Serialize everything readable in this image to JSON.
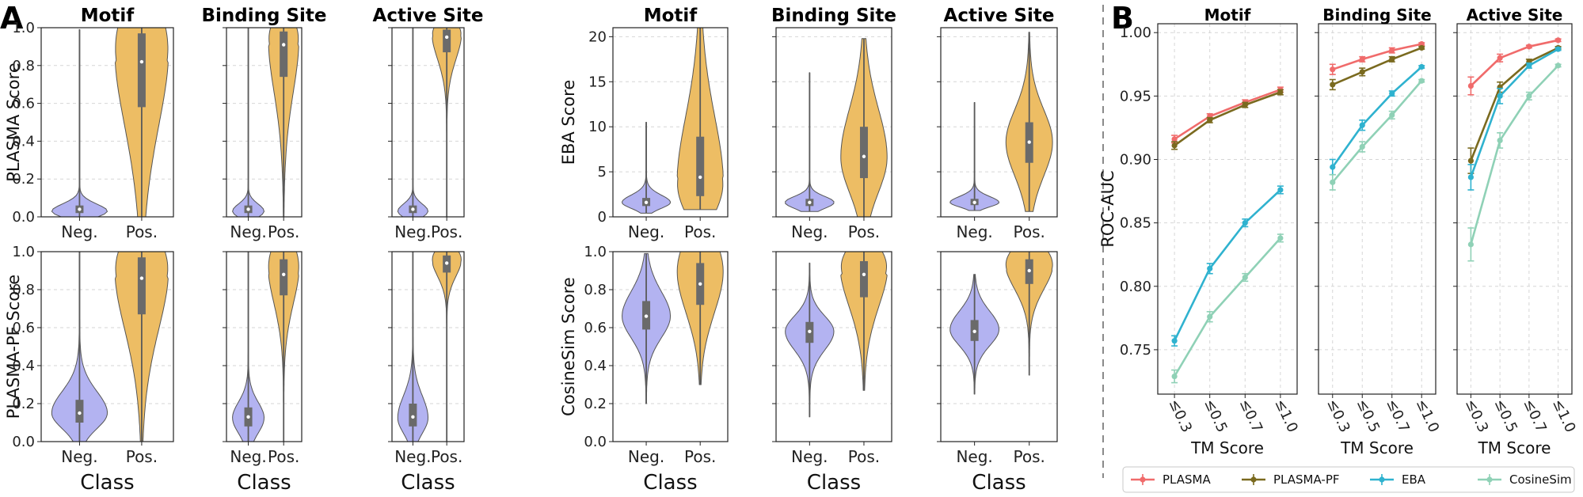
{
  "figure": {
    "panel_a_label": "A",
    "panel_b_label": "B"
  },
  "colors": {
    "negative": "#b3b3f1",
    "positive": "#edbd64",
    "PLASMA": "#f06b6b",
    "PLASMA-PF": "#7a6a1f",
    "EBA": "#2fb2cf",
    "CosineSim": "#8fd1b6"
  },
  "chart_data": [
    {
      "type": "violin",
      "panel": "A",
      "row": "PLASMA Score",
      "ylabel": "PLASMA Score",
      "ylim": [
        0,
        1.0
      ],
      "yticks": [
        "0.0",
        "0.2",
        "0.4",
        "0.6",
        "0.8",
        "1.0"
      ],
      "xlabel": "Class",
      "categories": [
        "Neg.",
        "Pos."
      ],
      "subplots": [
        {
          "title": "Motif",
          "neg": {
            "min": 0.0,
            "q1": 0.02,
            "median": 0.04,
            "q3": 0.06,
            "max": 0.99,
            "mode": 0.02
          },
          "pos": {
            "min": 0.0,
            "q1": 0.58,
            "median": 0.82,
            "q3": 0.97,
            "max": 1.0,
            "mode": 0.97
          }
        },
        {
          "title": "Binding Site",
          "neg": {
            "min": 0.0,
            "q1": 0.02,
            "median": 0.04,
            "q3": 0.06,
            "max": 1.0,
            "mode": 0.02
          },
          "pos": {
            "min": 0.0,
            "q1": 0.74,
            "median": 0.91,
            "q3": 0.98,
            "max": 1.0,
            "mode": 0.98
          }
        },
        {
          "title": "Active Site",
          "neg": {
            "min": 0.0,
            "q1": 0.02,
            "median": 0.04,
            "q3": 0.06,
            "max": 1.0,
            "mode": 0.02
          },
          "pos": {
            "min": 0.0,
            "q1": 0.87,
            "median": 0.95,
            "q3": 0.99,
            "max": 1.0,
            "mode": 0.99
          }
        }
      ]
    },
    {
      "type": "violin",
      "panel": "A",
      "row": "EBA Score",
      "ylabel": "EBA Score",
      "ylim": [
        0,
        21
      ],
      "yticks": [
        "0",
        "5",
        "10",
        "15",
        "20"
      ],
      "xlabel": "Class",
      "categories": [
        "Neg.",
        "Pos."
      ],
      "subplots": [
        {
          "title": "Motif",
          "neg": {
            "min": 0.4,
            "q1": 1.2,
            "median": 1.6,
            "q3": 2.1,
            "max": 10.5,
            "mode": 1.6
          },
          "pos": {
            "min": 0.8,
            "q1": 2.3,
            "median": 4.4,
            "q3": 8.9,
            "max": 21.0,
            "mode": 2.8
          }
        },
        {
          "title": "Binding Site",
          "neg": {
            "min": 0.6,
            "q1": 1.2,
            "median": 1.6,
            "q3": 2.0,
            "max": 16.0,
            "mode": 1.6
          },
          "pos": {
            "min": 0.0,
            "q1": 4.3,
            "median": 6.7,
            "q3": 10.0,
            "max": 19.8,
            "mode": 6.5
          }
        },
        {
          "title": "Active Site",
          "neg": {
            "min": 0.7,
            "q1": 1.3,
            "median": 1.6,
            "q3": 2.0,
            "max": 12.7,
            "mode": 1.6
          },
          "pos": {
            "min": 0.6,
            "q1": 6.0,
            "median": 8.3,
            "q3": 10.5,
            "max": 20.5,
            "mode": 8.3
          }
        }
      ]
    },
    {
      "type": "violin",
      "panel": "A",
      "row": "PLASMA-PF Score",
      "ylabel": "PLASMA-PF Score",
      "ylim": [
        0,
        1.0
      ],
      "yticks": [
        "0.0",
        "0.2",
        "0.4",
        "0.6",
        "0.8",
        "1.0"
      ],
      "xlabel": "Class",
      "categories": [
        "Neg.",
        "Pos."
      ],
      "subplots": [
        {
          "title": "Motif",
          "neg": {
            "min": 0.0,
            "q1": 0.1,
            "median": 0.15,
            "q3": 0.22,
            "max": 1.0,
            "mode": 0.15
          },
          "pos": {
            "min": 0.0,
            "q1": 0.67,
            "median": 0.86,
            "q3": 0.97,
            "max": 1.0,
            "mode": 0.97
          }
        },
        {
          "title": "Binding Site",
          "neg": {
            "min": 0.0,
            "q1": 0.08,
            "median": 0.13,
            "q3": 0.18,
            "max": 1.0,
            "mode": 0.12
          },
          "pos": {
            "min": 0.0,
            "q1": 0.77,
            "median": 0.88,
            "q3": 0.96,
            "max": 1.0,
            "mode": 0.97
          }
        },
        {
          "title": "Active Site",
          "neg": {
            "min": 0.0,
            "q1": 0.08,
            "median": 0.13,
            "q3": 0.2,
            "max": 1.0,
            "mode": 0.12
          },
          "pos": {
            "min": 0.0,
            "q1": 0.89,
            "median": 0.94,
            "q3": 0.98,
            "max": 1.0,
            "mode": 0.98
          }
        }
      ]
    },
    {
      "type": "violin",
      "panel": "A",
      "row": "CosineSim Score",
      "ylabel": "CosineSim Score",
      "ylim": [
        0,
        1.0
      ],
      "yticks": [
        "0.0",
        "0.2",
        "0.4",
        "0.6",
        "0.8",
        "1.0"
      ],
      "xlabel": "Class",
      "categories": [
        "Neg.",
        "Pos."
      ],
      "subplots": [
        {
          "title": "Motif",
          "neg": {
            "min": 0.2,
            "q1": 0.59,
            "median": 0.66,
            "q3": 0.74,
            "max": 0.99,
            "mode": 0.66
          },
          "pos": {
            "min": 0.3,
            "q1": 0.72,
            "median": 0.83,
            "q3": 0.94,
            "max": 1.0,
            "mode": 0.97
          }
        },
        {
          "title": "Binding Site",
          "neg": {
            "min": 0.13,
            "q1": 0.52,
            "median": 0.58,
            "q3": 0.63,
            "max": 0.94,
            "mode": 0.58
          },
          "pos": {
            "min": 0.27,
            "q1": 0.76,
            "median": 0.88,
            "q3": 0.95,
            "max": 1.0,
            "mode": 0.97
          }
        },
        {
          "title": "Active Site",
          "neg": {
            "min": 0.25,
            "q1": 0.53,
            "median": 0.58,
            "q3": 0.64,
            "max": 0.88,
            "mode": 0.6
          },
          "pos": {
            "min": 0.35,
            "q1": 0.83,
            "median": 0.9,
            "q3": 0.96,
            "max": 1.0,
            "mode": 0.97
          }
        }
      ]
    },
    {
      "type": "line",
      "panel": "B",
      "ylabel": "ROC-AUC",
      "xlabel": "TM Score",
      "ylim": [
        0.715,
        1.007
      ],
      "yticks": [
        "0.75",
        "0.80",
        "0.85",
        "0.90",
        "0.95",
        "1.00"
      ],
      "x": [
        "≤0.3",
        "≤0.5",
        "≤0.7",
        "≤1.0"
      ],
      "legend": [
        "PLASMA",
        "PLASMA-PF",
        "EBA",
        "CosineSim"
      ],
      "legend_position": "bottom",
      "subplots": [
        {
          "title": "Motif",
          "series": [
            {
              "name": "PLASMA",
              "values": [
                0.916,
                0.934,
                0.945,
                0.955
              ],
              "errors": [
                0.003,
                0.002,
                0.002,
                0.002
              ]
            },
            {
              "name": "PLASMA-PF",
              "values": [
                0.911,
                0.931,
                0.943,
                0.953
              ],
              "errors": [
                0.003,
                0.002,
                0.002,
                0.002
              ]
            },
            {
              "name": "EBA",
              "values": [
                0.757,
                0.814,
                0.85,
                0.876
              ],
              "errors": [
                0.004,
                0.004,
                0.003,
                0.003
              ]
            },
            {
              "name": "CosineSim",
              "values": [
                0.729,
                0.776,
                0.807,
                0.838
              ],
              "errors": [
                0.005,
                0.004,
                0.003,
                0.003
              ]
            }
          ]
        },
        {
          "title": "Binding Site",
          "series": [
            {
              "name": "PLASMA",
              "values": [
                0.971,
                0.979,
                0.986,
                0.991
              ],
              "errors": [
                0.004,
                0.002,
                0.002,
                0.001
              ]
            },
            {
              "name": "PLASMA-PF",
              "values": [
                0.959,
                0.969,
                0.979,
                0.988
              ],
              "errors": [
                0.004,
                0.003,
                0.002,
                0.001
              ]
            },
            {
              "name": "EBA",
              "values": [
                0.894,
                0.927,
                0.952,
                0.973
              ],
              "errors": [
                0.006,
                0.004,
                0.002,
                0.001
              ]
            },
            {
              "name": "CosineSim",
              "values": [
                0.882,
                0.91,
                0.935,
                0.962
              ],
              "errors": [
                0.006,
                0.004,
                0.003,
                0.001
              ]
            }
          ]
        },
        {
          "title": "Active Site",
          "series": [
            {
              "name": "PLASMA",
              "values": [
                0.958,
                0.98,
                0.989,
                0.994
              ],
              "errors": [
                0.007,
                0.003,
                0.001,
                0.001
              ]
            },
            {
              "name": "PLASMA-PF",
              "values": [
                0.899,
                0.957,
                0.977,
                0.988
              ],
              "errors": [
                0.01,
                0.004,
                0.002,
                0.001
              ]
            },
            {
              "name": "EBA",
              "values": [
                0.886,
                0.95,
                0.974,
                0.987
              ],
              "errors": [
                0.01,
                0.006,
                0.002,
                0.001
              ]
            },
            {
              "name": "CosineSim",
              "values": [
                0.833,
                0.915,
                0.95,
                0.974
              ],
              "errors": [
                0.013,
                0.006,
                0.003,
                0.001
              ]
            }
          ]
        }
      ]
    }
  ]
}
